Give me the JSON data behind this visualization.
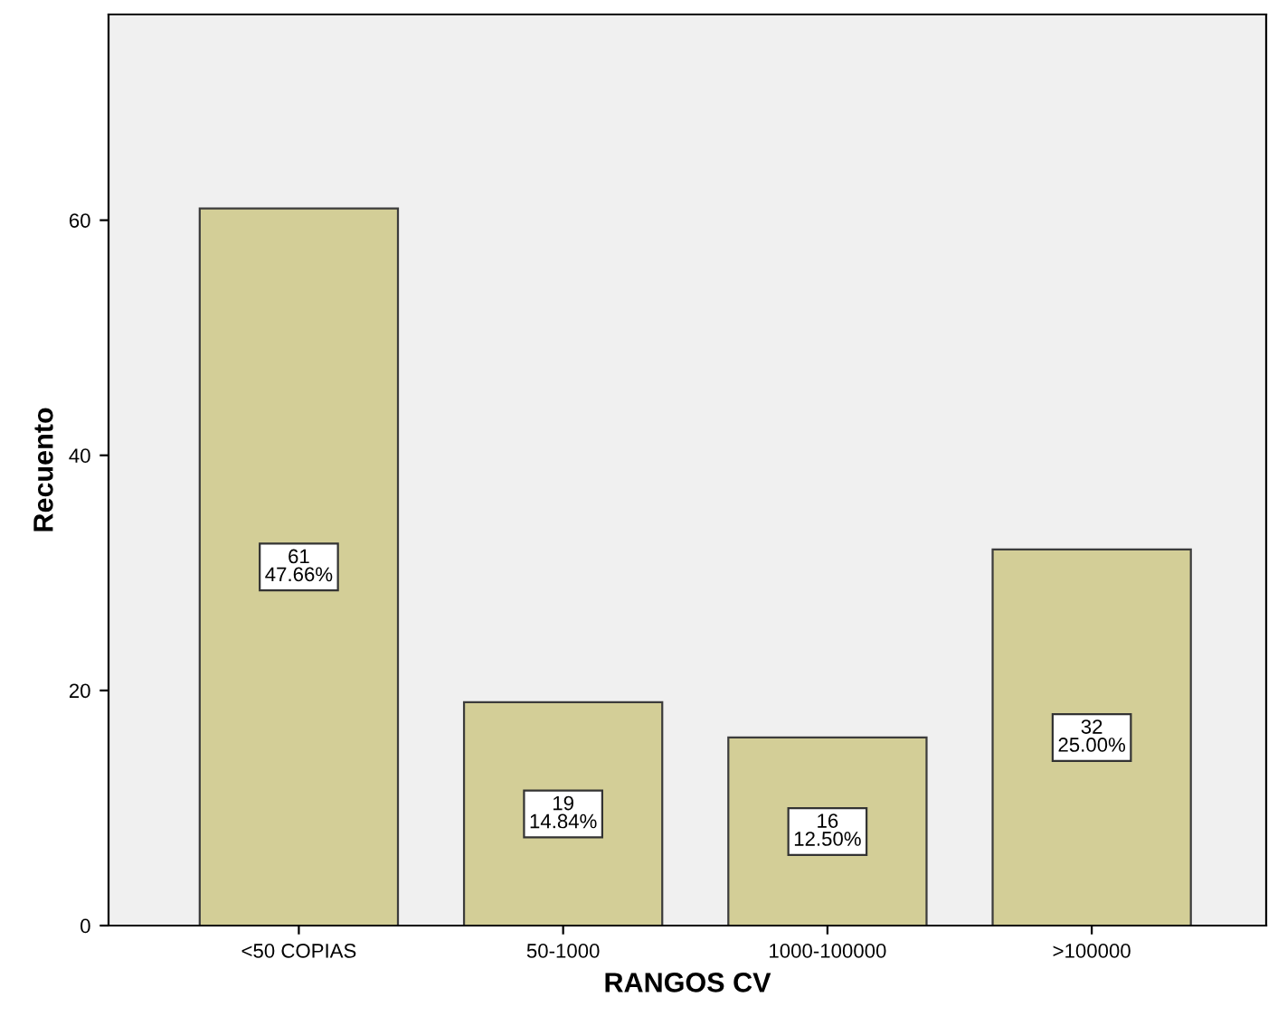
{
  "chart_data": {
    "type": "bar",
    "xlabel": "RANGOS CV",
    "ylabel": "Recuento",
    "categories": [
      "<50 COPIAS",
      "50-1000",
      "1000-100000",
      ">100000"
    ],
    "values": [
      61,
      19,
      16,
      32
    ],
    "value_labels": [
      "61\n47.66%",
      "19\n14.84%",
      "16\n12.50%",
      "32\n25.00%"
    ],
    "color": "#d3ce97",
    "ylim": [
      0,
      77.5
    ],
    "yticks": [
      0,
      20,
      40,
      60
    ],
    "grid": false,
    "legend": false
  }
}
